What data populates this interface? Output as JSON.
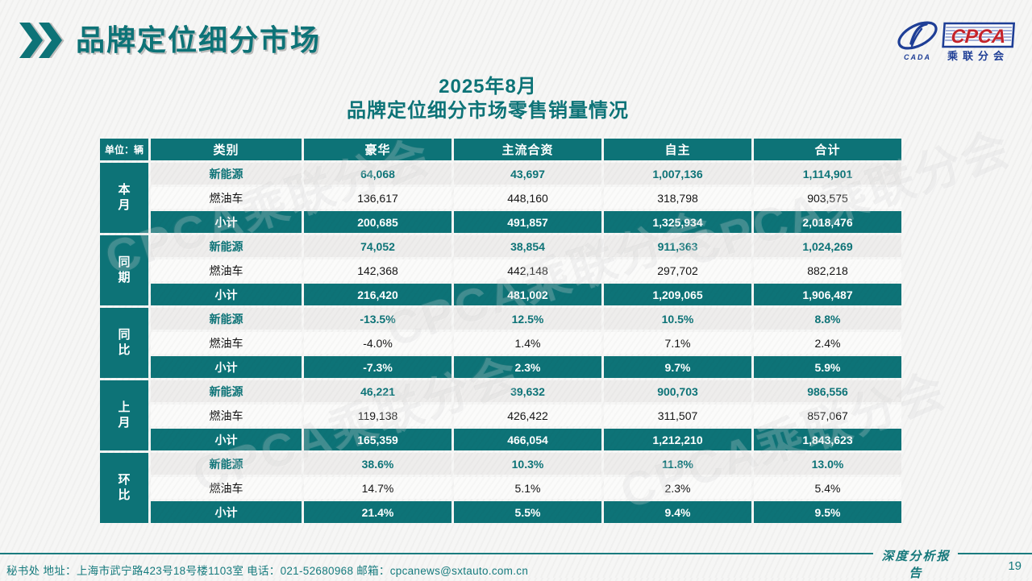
{
  "page": {
    "title": "品牌定位细分市场"
  },
  "logo": {
    "cpca": "CPCA",
    "cada": "CADA",
    "branch": "乘联分会"
  },
  "heading": {
    "line1": "2025年8月",
    "line2": "品牌定位细分市场零售销量情况"
  },
  "table": {
    "unit_label": "单位：辆",
    "columns": [
      "类别",
      "豪华",
      "主流合资",
      "自主",
      "合计"
    ],
    "groups": [
      {
        "label": "本月",
        "rows": [
          {
            "type": "nev",
            "label": "新能源",
            "values": [
              "64,068",
              "43,697",
              "1,007,136",
              "1,114,901"
            ]
          },
          {
            "type": "fuel",
            "label": "燃油车",
            "values": [
              "136,617",
              "448,160",
              "318,798",
              "903,575"
            ]
          },
          {
            "type": "subtotal",
            "label": "小计",
            "values": [
              "200,685",
              "491,857",
              "1,325,934",
              "2,018,476"
            ]
          }
        ]
      },
      {
        "label": "同期",
        "rows": [
          {
            "type": "nev",
            "label": "新能源",
            "values": [
              "74,052",
              "38,854",
              "911,363",
              "1,024,269"
            ]
          },
          {
            "type": "fuel",
            "label": "燃油车",
            "values": [
              "142,368",
              "442,148",
              "297,702",
              "882,218"
            ]
          },
          {
            "type": "subtotal",
            "label": "小计",
            "values": [
              "216,420",
              "481,002",
              "1,209,065",
              "1,906,487"
            ]
          }
        ]
      },
      {
        "label": "同比",
        "rows": [
          {
            "type": "nev",
            "label": "新能源",
            "values": [
              "-13.5%",
              "12.5%",
              "10.5%",
              "8.8%"
            ]
          },
          {
            "type": "fuel",
            "label": "燃油车",
            "values": [
              "-4.0%",
              "1.4%",
              "7.1%",
              "2.4%"
            ]
          },
          {
            "type": "subtotal",
            "label": "小计",
            "values": [
              "-7.3%",
              "2.3%",
              "9.7%",
              "5.9%"
            ]
          }
        ]
      },
      {
        "label": "上月",
        "rows": [
          {
            "type": "nev",
            "label": "新能源",
            "values": [
              "46,221",
              "39,632",
              "900,703",
              "986,556"
            ]
          },
          {
            "type": "fuel",
            "label": "燃油车",
            "values": [
              "119,138",
              "426,422",
              "311,507",
              "857,067"
            ]
          },
          {
            "type": "subtotal",
            "label": "小计",
            "values": [
              "165,359",
              "466,054",
              "1,212,210",
              "1,843,623"
            ]
          }
        ]
      },
      {
        "label": "环比",
        "rows": [
          {
            "type": "nev",
            "label": "新能源",
            "values": [
              "38.6%",
              "10.3%",
              "11.8%",
              "13.0%"
            ]
          },
          {
            "type": "fuel",
            "label": "燃油车",
            "values": [
              "14.7%",
              "5.1%",
              "2.3%",
              "5.4%"
            ]
          },
          {
            "type": "subtotal",
            "label": "小计",
            "values": [
              "21.4%",
              "5.5%",
              "9.4%",
              "9.5%"
            ]
          }
        ]
      }
    ]
  },
  "watermark": "CPCA乘联分会",
  "footer": {
    "left_text": "秘书处   地址：上海市武宁路423号18号楼1103室  电话：021-52680968   邮箱：cpcanews@sxtauto.com.cn",
    "report_label": "深度分析报告",
    "page_number": "19"
  },
  "colors": {
    "teal": "#0d7377",
    "logo_blue": "#1e3e96",
    "logo_red": "#c4232b"
  }
}
